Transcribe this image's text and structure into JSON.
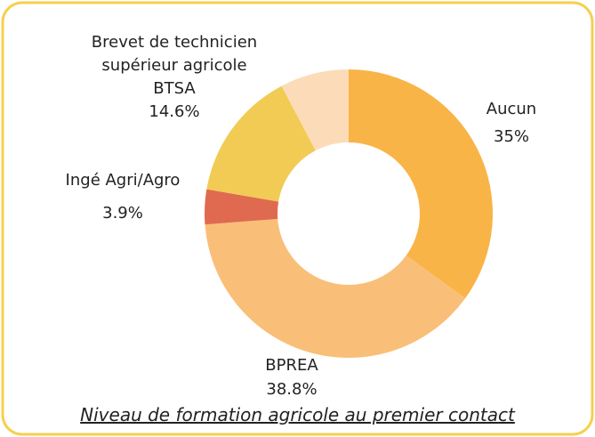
{
  "chart_data": {
    "type": "donut",
    "title": "Niveau de formation agricole au premier contact",
    "categories": [
      "Aucun",
      "BPREA",
      "Ingé Agri/Agro",
      "Brevet de technicien\nsupérieur agricole\nBTSA",
      null
    ],
    "values": [
      35,
      38.8,
      3.9,
      14.6,
      7.7
    ],
    "value_labels": [
      "35%",
      "38.8%",
      "3.9%",
      "14.6%",
      null
    ],
    "colors": [
      "#f9b447",
      "#f9bf78",
      "#e06a50",
      "#f2cb55",
      "#fcdcb8"
    ]
  }
}
